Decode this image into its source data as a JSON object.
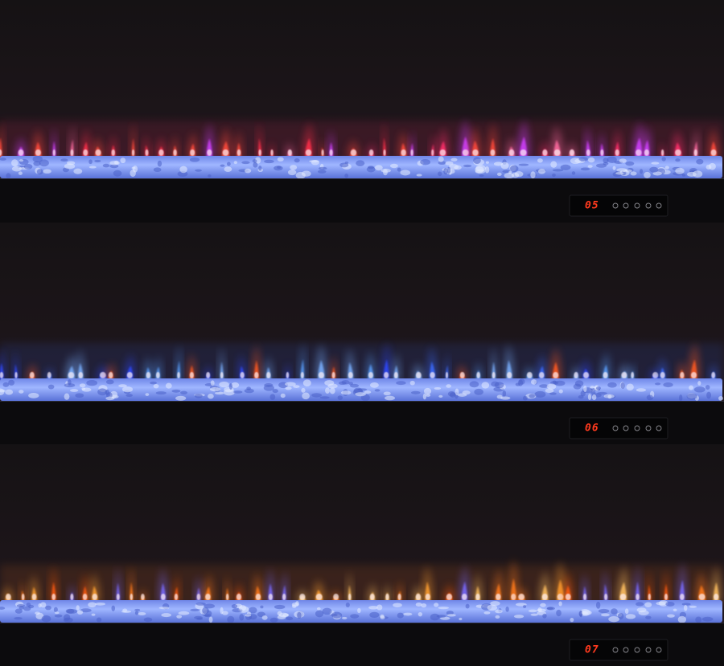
{
  "panels": [
    {
      "display": "05"
    },
    {
      "display": "06"
    },
    {
      "display": "07"
    }
  ]
}
